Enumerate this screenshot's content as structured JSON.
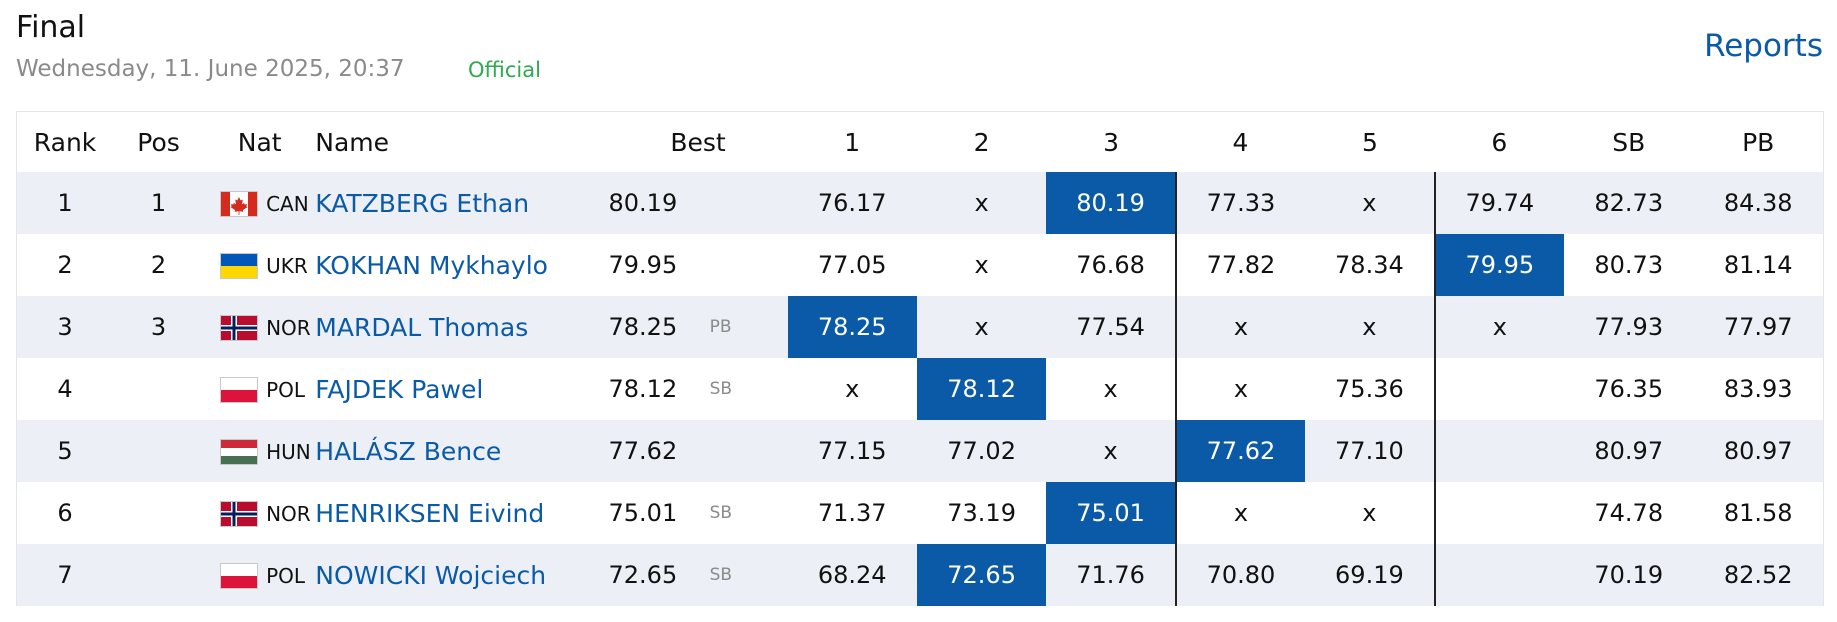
{
  "header": {
    "title": "Final",
    "date": "Wednesday, 11. June 2025, 20:37",
    "status": "Official",
    "status_color": "#2eaa4f",
    "reports_label": "Reports"
  },
  "colors": {
    "accent": "#0a5aa8",
    "row_alt": "#ecf0f6"
  },
  "columns": [
    "Rank",
    "Pos",
    "Nat",
    "Name",
    "Best",
    "1",
    "2",
    "3",
    "4",
    "5",
    "6",
    "SB",
    "PB"
  ],
  "rows": [
    {
      "rank": "1",
      "pos": "1",
      "nat": "CAN",
      "flag": "canada-flag-icon",
      "name": "KATZBERG Ethan",
      "best": "80.19",
      "mark": "",
      "attempts": [
        "76.17",
        "x",
        "80.19",
        "77.33",
        "x",
        "79.74"
      ],
      "best_index": 2,
      "sb": "82.73",
      "pb": "84.38"
    },
    {
      "rank": "2",
      "pos": "2",
      "nat": "UKR",
      "flag": "ukraine-flag-icon",
      "name": "KOKHAN Mykhaylo",
      "best": "79.95",
      "mark": "",
      "attempts": [
        "77.05",
        "x",
        "76.68",
        "77.82",
        "78.34",
        "79.95"
      ],
      "best_index": 5,
      "sb": "80.73",
      "pb": "81.14"
    },
    {
      "rank": "3",
      "pos": "3",
      "nat": "NOR",
      "flag": "norway-flag-icon",
      "name": "MARDAL Thomas",
      "best": "78.25",
      "mark": "PB",
      "attempts": [
        "78.25",
        "x",
        "77.54",
        "x",
        "x",
        "x"
      ],
      "best_index": 0,
      "sb": "77.93",
      "pb": "77.97"
    },
    {
      "rank": "4",
      "pos": "",
      "nat": "POL",
      "flag": "poland-flag-icon",
      "name": "FAJDEK Pawel",
      "best": "78.12",
      "mark": "SB",
      "attempts": [
        "x",
        "78.12",
        "x",
        "x",
        "75.36",
        ""
      ],
      "best_index": 1,
      "sb": "76.35",
      "pb": "83.93"
    },
    {
      "rank": "5",
      "pos": "",
      "nat": "HUN",
      "flag": "hungary-flag-icon",
      "name": "HALÁSZ Bence",
      "best": "77.62",
      "mark": "",
      "attempts": [
        "77.15",
        "77.02",
        "x",
        "77.62",
        "77.10",
        ""
      ],
      "best_index": 3,
      "sb": "80.97",
      "pb": "80.97"
    },
    {
      "rank": "6",
      "pos": "",
      "nat": "NOR",
      "flag": "norway-flag-icon",
      "name": "HENRIKSEN Eivind",
      "best": "75.01",
      "mark": "SB",
      "attempts": [
        "71.37",
        "73.19",
        "75.01",
        "x",
        "x",
        ""
      ],
      "best_index": 2,
      "sb": "74.78",
      "pb": "81.58"
    },
    {
      "rank": "7",
      "pos": "",
      "nat": "POL",
      "flag": "poland-flag-icon",
      "name": "NOWICKI Wojciech",
      "best": "72.65",
      "mark": "SB",
      "attempts": [
        "68.24",
        "72.65",
        "71.76",
        "70.80",
        "69.19",
        ""
      ],
      "best_index": 1,
      "sb": "70.19",
      "pb": "82.52"
    }
  ]
}
